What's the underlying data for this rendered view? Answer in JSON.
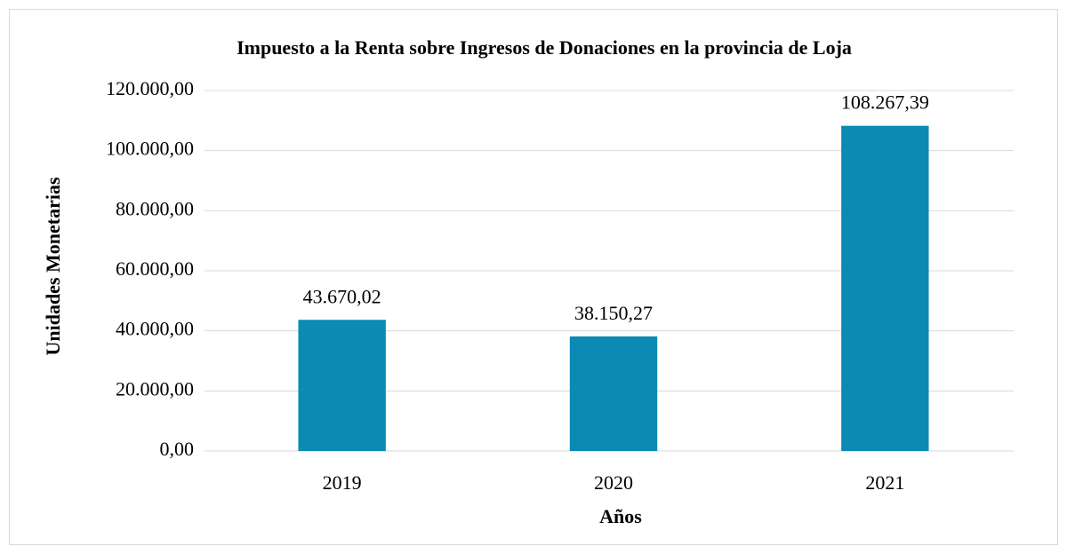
{
  "chart_data": {
    "type": "bar",
    "title": "Impuesto a la Renta sobre Ingresos de Donaciones en la provincia de Loja",
    "x_label": "Años",
    "y_label": "Unidades Monetarias",
    "categories": [
      "2019",
      "2020",
      "2021"
    ],
    "values": [
      43670.02,
      38150.27,
      108267.39
    ],
    "value_labels": [
      "43.670,02",
      "38.150,27",
      "108.267,39"
    ],
    "color": "#0b8ab4",
    "ylim": [
      0,
      120000
    ],
    "yticks": [
      {
        "value": 0,
        "label": "0,00"
      },
      {
        "value": 20000,
        "label": "20.000,00"
      },
      {
        "value": 40000,
        "label": "40.000,00"
      },
      {
        "value": 60000,
        "label": "60.000,00"
      },
      {
        "value": 80000,
        "label": "80.000,00"
      },
      {
        "value": 100000,
        "label": "100.000,00"
      },
      {
        "value": 120000,
        "label": "120.000,00"
      }
    ],
    "grid": true
  }
}
